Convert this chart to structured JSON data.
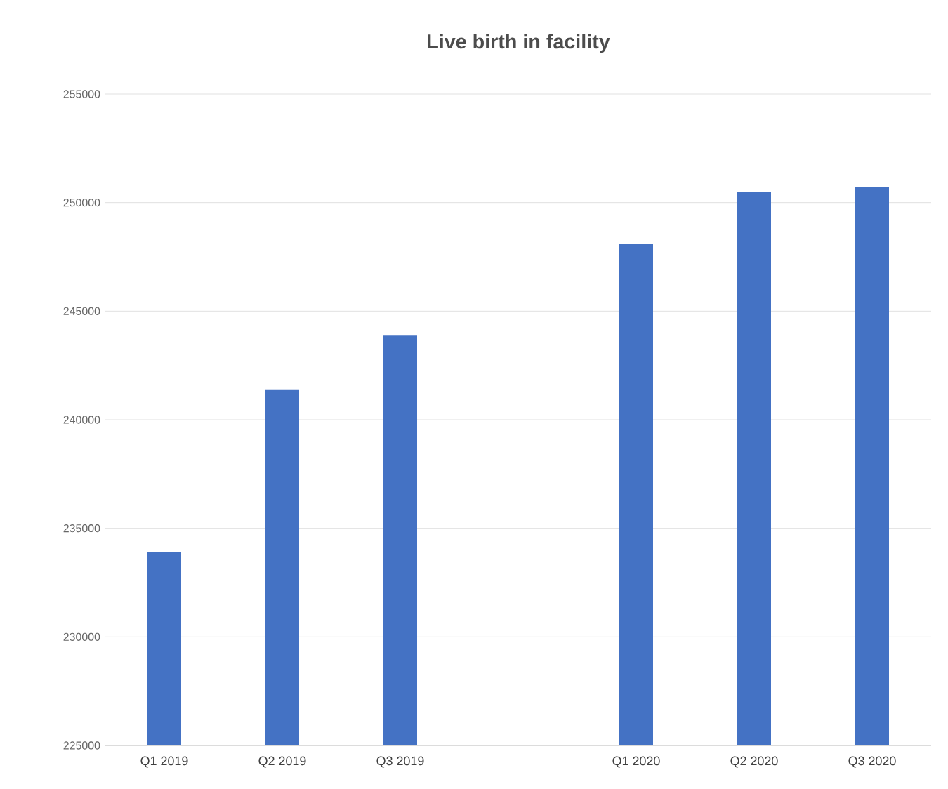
{
  "chart_data": {
    "type": "bar",
    "title": "Live birth in facility",
    "categories": [
      "Q1 2019",
      "Q2 2019",
      "Q3 2019",
      null,
      "Q1 2020",
      "Q2 2020",
      "Q3 2020"
    ],
    "values": [
      233900,
      241400,
      243900,
      null,
      248100,
      250500,
      250700
    ],
    "color": "#4472c4",
    "ylim": [
      225000,
      255000
    ],
    "yticks": [
      225000,
      230000,
      235000,
      240000,
      245000,
      250000,
      255000
    ],
    "grid": "y"
  }
}
